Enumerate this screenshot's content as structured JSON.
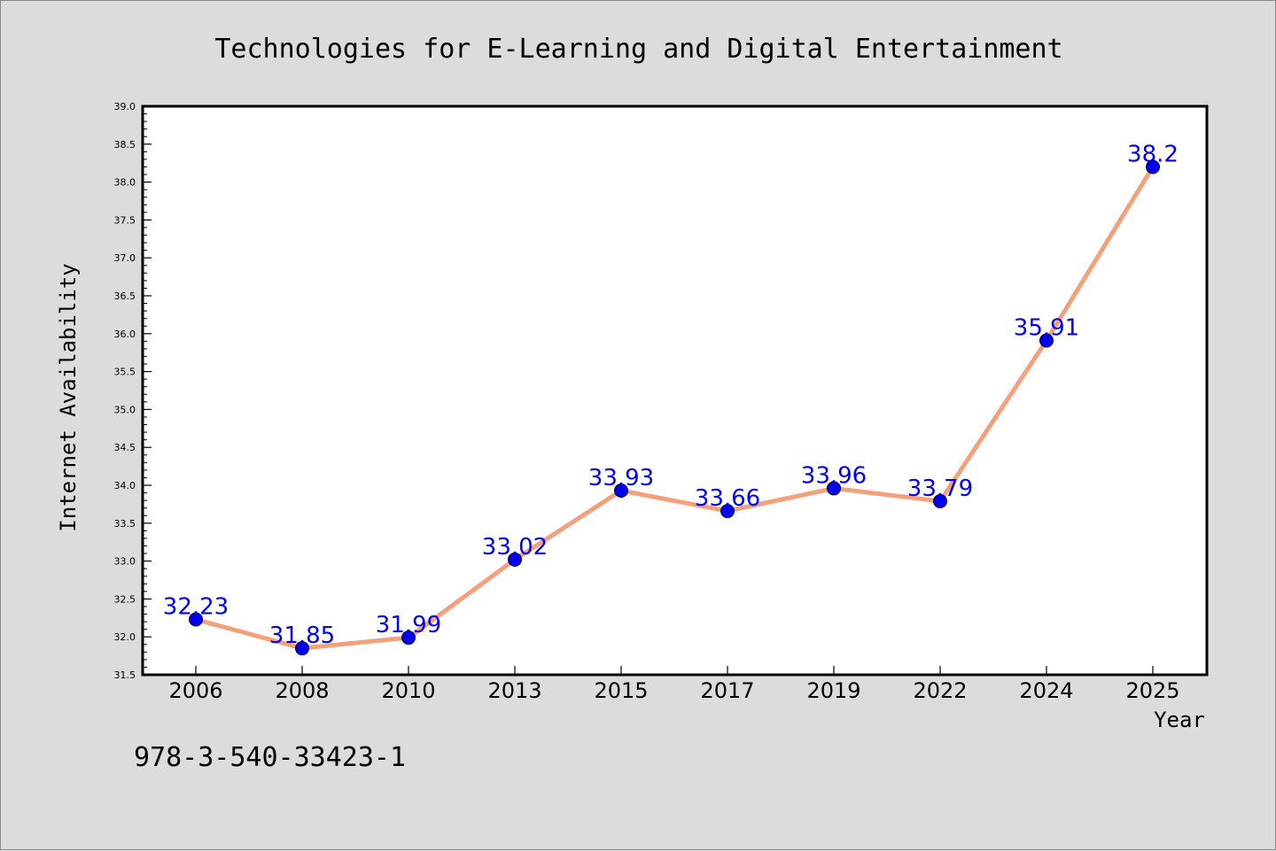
{
  "chart_data": {
    "type": "line",
    "title": "Technologies for E-Learning and Digital Entertainment",
    "xlabel": "Year",
    "ylabel": "Internet Availability",
    "categories": [
      "2006",
      "2008",
      "2010",
      "2013",
      "2015",
      "2017",
      "2019",
      "2022",
      "2024",
      "2025"
    ],
    "values": [
      32.23,
      31.85,
      31.99,
      33.02,
      33.93,
      33.66,
      33.96,
      33.79,
      35.91,
      38.2
    ],
    "data_labels": [
      "32.23",
      "31.85",
      "31.99",
      "33.02",
      "33.93",
      "33.66",
      "33.96",
      "33.79",
      "35.91",
      "38.2"
    ],
    "ylim": [
      31.5,
      39.0
    ],
    "yticks": [
      "31.5",
      "32.0",
      "32.5",
      "33.0",
      "33.5",
      "34.0",
      "34.5",
      "35.0",
      "35.5",
      "36.0",
      "36.5",
      "37.0",
      "37.5",
      "38.0",
      "38.5",
      "39.0"
    ],
    "grid": false,
    "legend": "none",
    "colors": {
      "line": "#f4a07a",
      "marker": "#0000ee",
      "data_label": "#0000ff",
      "background": "#dcdcdc",
      "plot_background": "#ffffff"
    }
  },
  "footer": {
    "isbn": "978-3-540-33423-1"
  }
}
